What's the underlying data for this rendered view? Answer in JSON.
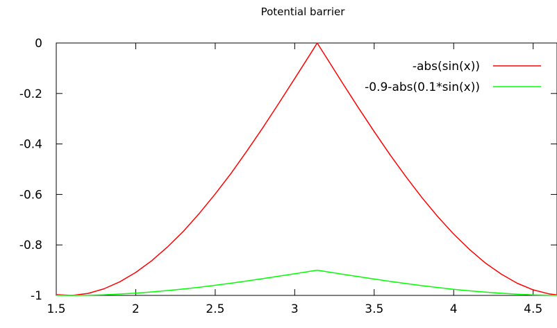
{
  "chart_data": {
    "type": "line",
    "title": "Potential barrier",
    "xlabel": "",
    "ylabel": "",
    "xlim": [
      1.5,
      4.65
    ],
    "ylim": [
      -1,
      0
    ],
    "x_ticks": [
      1.5,
      2,
      2.5,
      3,
      3.5,
      4,
      4.5
    ],
    "x_tick_labels": [
      "1.5",
      "2",
      "2.5",
      "3",
      "3.5",
      "4",
      "4.5"
    ],
    "y_ticks": [
      0,
      -0.2,
      -0.4,
      -0.6,
      -0.8,
      -1
    ],
    "y_tick_labels": [
      "0",
      "-0.2",
      "-0.4",
      "-0.6",
      "-0.8",
      "-1"
    ],
    "grid": false,
    "legend_position": "top-right",
    "series": [
      {
        "name": "-abs(sin(x))",
        "color": "#ff0000",
        "x": [
          1.5,
          1.6,
          1.7,
          1.8,
          1.9,
          2.0,
          2.1,
          2.2,
          2.3,
          2.4,
          2.5,
          2.6,
          2.7,
          2.8,
          2.9,
          3.0,
          3.1,
          3.1416,
          3.2,
          3.3,
          3.4,
          3.5,
          3.6,
          3.7,
          3.8,
          3.9,
          4.0,
          4.1,
          4.2,
          4.3,
          4.4,
          4.5,
          4.6,
          4.65
        ],
        "y": [
          -0.997,
          -1.0,
          -0.992,
          -0.974,
          -0.946,
          -0.909,
          -0.863,
          -0.808,
          -0.746,
          -0.675,
          -0.598,
          -0.516,
          -0.427,
          -0.335,
          -0.239,
          -0.141,
          -0.042,
          0.0,
          -0.058,
          -0.158,
          -0.256,
          -0.351,
          -0.443,
          -0.53,
          -0.612,
          -0.688,
          -0.757,
          -0.818,
          -0.872,
          -0.916,
          -0.952,
          -0.978,
          -0.994,
          -0.998
        ]
      },
      {
        "name": "-0.9-abs(0.1*sin(x))",
        "color": "#00ff00",
        "x": [
          1.5,
          1.6,
          1.7,
          1.8,
          1.9,
          2.0,
          2.1,
          2.2,
          2.3,
          2.4,
          2.5,
          2.6,
          2.7,
          2.8,
          2.9,
          3.0,
          3.1,
          3.1416,
          3.2,
          3.3,
          3.4,
          3.5,
          3.6,
          3.7,
          3.8,
          3.9,
          4.0,
          4.1,
          4.2,
          4.3,
          4.4,
          4.5,
          4.6,
          4.65
        ],
        "y": [
          -0.9997,
          -1.0,
          -0.9992,
          -0.9974,
          -0.9946,
          -0.9909,
          -0.9863,
          -0.9808,
          -0.9746,
          -0.9675,
          -0.9598,
          -0.9516,
          -0.9427,
          -0.9335,
          -0.9239,
          -0.9141,
          -0.9042,
          -0.9,
          -0.9058,
          -0.9158,
          -0.9256,
          -0.9351,
          -0.9443,
          -0.953,
          -0.9612,
          -0.9688,
          -0.9757,
          -0.9818,
          -0.9872,
          -0.9916,
          -0.9952,
          -0.9978,
          -0.9994,
          -0.9998
        ]
      }
    ]
  }
}
